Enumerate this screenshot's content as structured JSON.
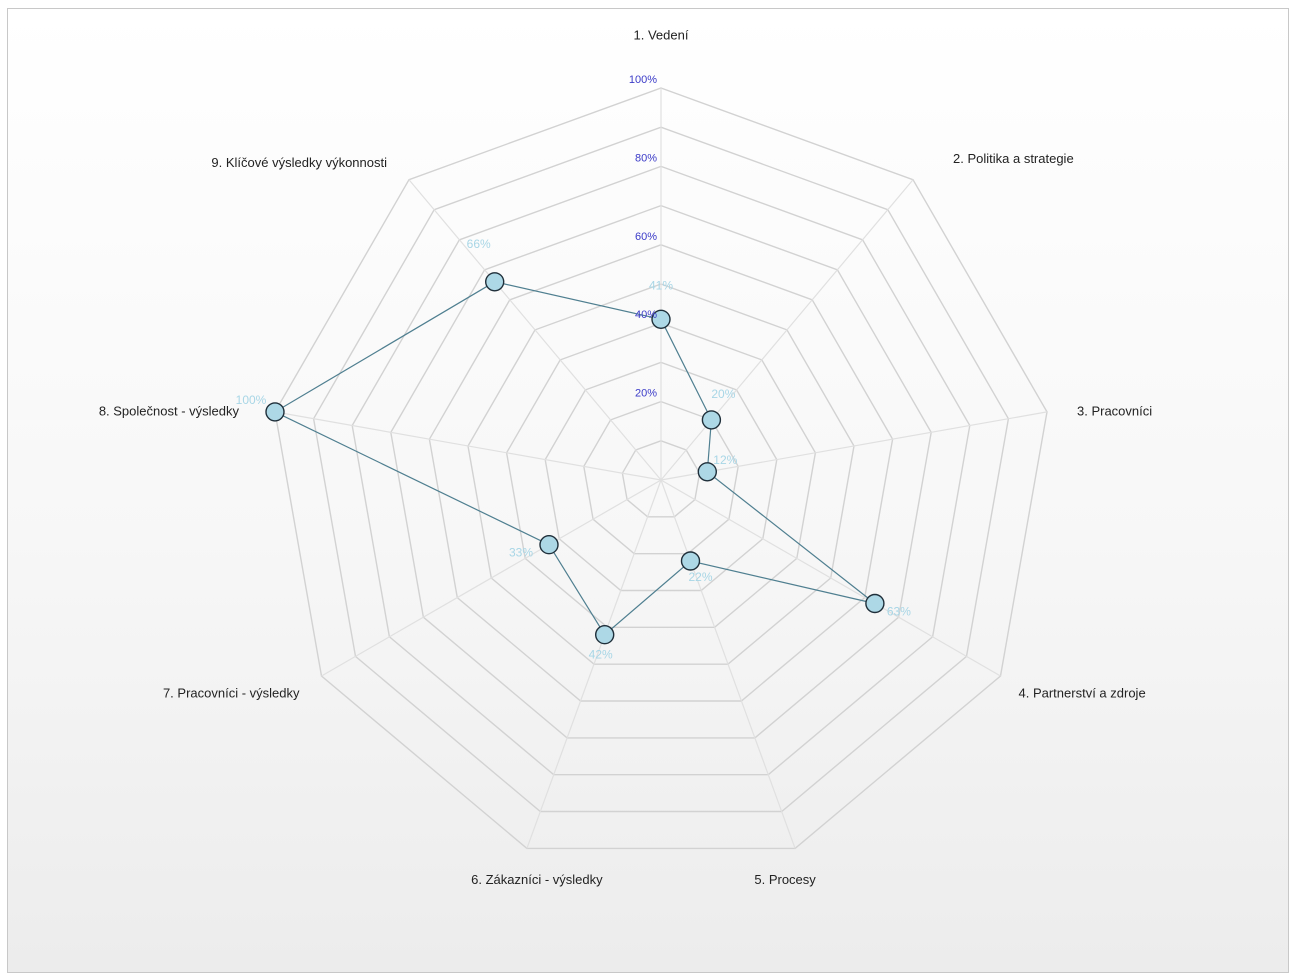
{
  "chart_data": {
    "type": "radar",
    "categories": [
      "1. Vedení",
      "2. Politika a strategie",
      "3. Pracovníci",
      "4. Partnerství a zdroje",
      "5. Procesy",
      "6. Zákazníci - výsledky",
      "7. Pracovníci - výsledky",
      "8. Společnost - výsledky",
      "9. Klíčové výsledky výkonnosti"
    ],
    "series": [
      {
        "values": [
          41,
          20,
          12,
          63,
          22,
          42,
          33,
          100,
          66
        ],
        "labels": [
          "41%",
          "20%",
          "12%",
          "63%",
          "22%",
          "42%",
          "33%",
          "100%",
          "66%"
        ]
      }
    ],
    "rlim": [
      0,
      100
    ],
    "ticks": [
      20,
      40,
      60,
      80,
      100
    ],
    "tick_labels": [
      "20%",
      "40%",
      "60%",
      "80%",
      "100%"
    ],
    "grid": true,
    "colors": {
      "marker_fill": "#add8e6",
      "line": "#4f7f90",
      "data_label": "#a8d6e6",
      "tick_label": "#3b3bc8",
      "grid": "#d2d2d2"
    }
  }
}
